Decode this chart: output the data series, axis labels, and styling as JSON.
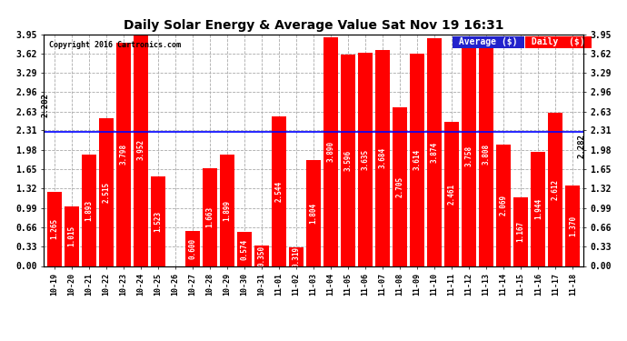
{
  "title": "Daily Solar Energy & Average Value Sat Nov 19 16:31",
  "copyright": "Copyright 2016 Cartronics.com",
  "categories": [
    "10-19",
    "10-20",
    "10-21",
    "10-22",
    "10-23",
    "10-24",
    "10-25",
    "10-26",
    "10-27",
    "10-28",
    "10-29",
    "10-30",
    "10-31",
    "11-01",
    "11-02",
    "11-03",
    "11-04",
    "11-05",
    "11-06",
    "11-07",
    "11-08",
    "11-09",
    "11-10",
    "11-11",
    "11-12",
    "11-13",
    "11-14",
    "11-15",
    "11-16",
    "11-17",
    "11-18"
  ],
  "values": [
    1.265,
    1.015,
    1.893,
    2.515,
    3.798,
    3.952,
    1.523,
    0.0,
    0.6,
    1.663,
    1.899,
    0.574,
    0.35,
    2.544,
    0.319,
    1.804,
    3.89,
    3.596,
    3.635,
    3.684,
    2.705,
    3.614,
    3.874,
    2.461,
    3.758,
    3.808,
    2.069,
    1.167,
    1.944,
    2.612,
    1.37
  ],
  "average_line": 2.282,
  "bar_color": "#FF0000",
  "average_line_color": "#0000FF",
  "background_color": "#FFFFFF",
  "plot_bg_color": "#FFFFFF",
  "grid_color": "#AAAAAA",
  "ylim": [
    0,
    3.95
  ],
  "yticks": [
    0.0,
    0.33,
    0.66,
    0.99,
    1.32,
    1.65,
    1.98,
    2.31,
    2.63,
    2.96,
    3.29,
    3.62,
    3.95
  ],
  "legend_avg_color": "#2222CC",
  "legend_daily_color": "#FF0000",
  "legend_text_color": "#FFFFFF",
  "avg_label": "Average ($)",
  "daily_label": "Daily  ($)"
}
